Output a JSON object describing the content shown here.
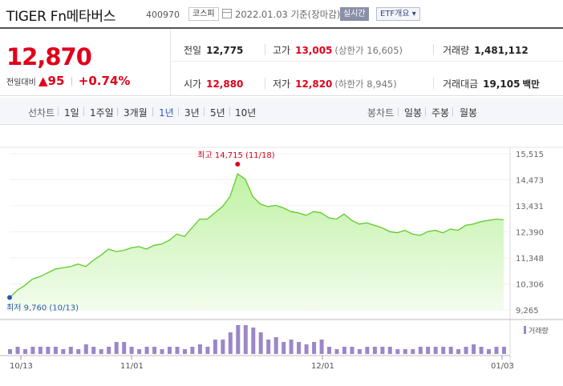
{
  "header": {
    "name": "TIGER Fn메타버스",
    "code": "400970",
    "market": "코스피",
    "date_text": "2022.01.03  기준(장마감)",
    "realtime": "실시간",
    "etf_overview": "ETF개요 ▾"
  },
  "price": {
    "current": "12,870",
    "change_label": "전일대비",
    "change": "95",
    "change_pct": "+0.74%"
  },
  "stats": {
    "prev_close": {
      "label": "전일",
      "value": "12,775"
    },
    "high": {
      "label": "고가",
      "value": "13,005",
      "note": "(상한가 16,605)"
    },
    "volume": {
      "label": "거래량",
      "value": "1,481,112"
    },
    "open": {
      "label": "시가",
      "value": "12,880"
    },
    "low": {
      "label": "저가",
      "value": "12,820",
      "note": "(하한가 8,945)"
    },
    "amount": {
      "label": "거래대금",
      "value": "19,105",
      "unit": "백만"
    }
  },
  "tabs": {
    "line_head": "선차트",
    "line": [
      "1일",
      "1주일",
      "3개월",
      "1년",
      "3년",
      "5년",
      "10년"
    ],
    "selected": "1년",
    "candle_head": "봉차트",
    "candle": [
      "일봉",
      "주봉",
      "월봉"
    ]
  },
  "colors": {
    "up": "#e0001b",
    "line": "#5ecb2b",
    "volume": "#9b87c7",
    "low_dot": "#2a5aa8"
  },
  "chart_data": {
    "type": "area",
    "y_ticks": [
      "15,515",
      "14,473",
      "13,431",
      "12,390",
      "11,348",
      "10,306",
      "9,265"
    ],
    "ylim": [
      9265,
      15515
    ],
    "x_ticks": [
      "10/13",
      "11/01",
      "12/01",
      "01/03"
    ],
    "high_label": "최고 14,715 (11/18)",
    "low_label": "최저 9,760 (10/13)",
    "volume_legend": "거래량",
    "high": 14715,
    "low": 9760,
    "prices": [
      9760,
      10050,
      10250,
      10500,
      10600,
      10750,
      10900,
      10950,
      11000,
      11100,
      11000,
      11250,
      11450,
      11700,
      11600,
      11650,
      11750,
      11800,
      11700,
      11850,
      11900,
      12050,
      12300,
      12200,
      12550,
      12900,
      12900,
      13150,
      13400,
      13800,
      14715,
      14500,
      13800,
      13500,
      13400,
      13450,
      13350,
      13200,
      13150,
      13050,
      13200,
      13150,
      12950,
      12900,
      13100,
      12850,
      12700,
      12750,
      12650,
      12550,
      12400,
      12350,
      12450,
      12300,
      12250,
      12400,
      12450,
      12350,
      12500,
      12450,
      12650,
      12700,
      12800,
      12850,
      12900,
      12870
    ],
    "volumes": [
      2,
      3,
      2,
      3,
      3,
      3,
      3,
      2,
      3,
      2,
      4,
      3,
      2,
      3,
      5,
      5,
      3,
      2,
      3,
      3,
      2,
      3,
      3,
      2,
      3,
      4,
      3,
      6,
      6,
      9,
      12,
      12,
      11,
      9,
      6,
      7,
      5,
      6,
      5,
      4,
      5,
      6,
      3,
      2,
      3,
      3,
      2,
      3,
      3,
      3,
      3,
      2,
      2,
      2,
      3,
      3,
      3,
      3,
      3,
      2,
      3,
      4,
      3,
      2,
      3,
      3
    ]
  }
}
